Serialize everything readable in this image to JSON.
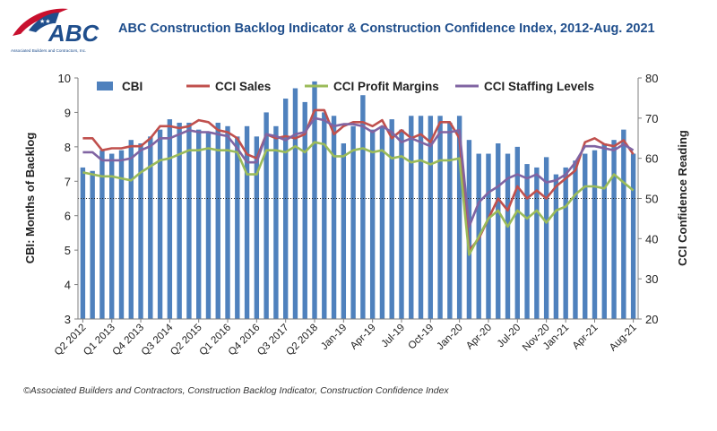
{
  "logo": {
    "text": "ABC",
    "subtext": "Associated Builders and Contractors, Inc."
  },
  "chart_data": {
    "type": "bar+line",
    "title": "ABC Construction Backlog Indicator & Construction Confidence Index, 2012-Aug. 2021",
    "ylabel_left": "CBI: Months of Backlog",
    "ylabel_right": "CCI Confidence Reading",
    "ylim_left": [
      3,
      10
    ],
    "ylim_right": [
      20,
      80
    ],
    "yticks_left": [
      "3",
      "4",
      "5",
      "6",
      "7",
      "8",
      "9",
      "10"
    ],
    "yticks_right": [
      "20",
      "30",
      "40",
      "50",
      "60",
      "70",
      "80"
    ],
    "reference_line_right": 50,
    "x_tick_labels": [
      "Q2 2012",
      "Q1 2013",
      "Q4 2013",
      "Q3 2014",
      "Q2 2015",
      "Q1 2016",
      "Q4 2016",
      "Q3 2017",
      "Q2 2018",
      "Jan-19",
      "Apr-19",
      "Jul-19",
      "Oct-19",
      "Jan-20",
      "Apr-20",
      "Jul-20",
      "Nov-20",
      "Jan-21",
      "Apr-21",
      "Aug-21"
    ],
    "x_tick_positions": [
      0,
      3,
      6,
      9,
      12,
      15,
      18,
      21,
      24,
      27,
      30,
      33,
      36,
      39,
      42,
      45,
      48,
      50,
      53,
      57
    ],
    "series": [
      {
        "name": "CBI",
        "type": "bar",
        "axis": "left",
        "color": "#4f81bd",
        "values": [
          7.4,
          7.3,
          7.9,
          7.8,
          7.9,
          8.2,
          8.1,
          8.3,
          8.5,
          8.8,
          8.7,
          8.7,
          8.5,
          8.4,
          8.7,
          8.6,
          8.3,
          8.6,
          8.3,
          9.0,
          8.6,
          9.4,
          9.7,
          9.3,
          9.9,
          9.0,
          8.9,
          8.1,
          8.6,
          9.5,
          8.5,
          8.6,
          8.8,
          8.5,
          8.9,
          8.9,
          8.9,
          8.9,
          8.7,
          8.9,
          8.2,
          7.8,
          7.8,
          8.1,
          7.8,
          8.0,
          7.5,
          7.4,
          7.7,
          7.2,
          7.4,
          7.6,
          7.8,
          7.9,
          8.1,
          8.2,
          8.5,
          7.8
        ]
      },
      {
        "name": "CCI Sales",
        "type": "line",
        "axis": "right",
        "color": "#c0504d",
        "values": [
          65,
          65,
          62,
          62.5,
          62.5,
          63,
          63,
          65,
          68,
          68,
          67.5,
          68,
          69.5,
          69,
          67,
          66.5,
          65,
          61,
          60,
          66,
          65,
          65.5,
          65,
          66,
          72,
          72,
          66,
          68,
          69,
          69,
          68,
          69.5,
          65,
          67,
          65,
          66,
          64,
          69,
          69,
          65,
          37,
          40,
          45,
          50,
          47,
          53,
          50,
          52,
          50,
          53,
          55,
          57,
          64,
          65,
          63.5,
          63,
          64.5,
          61
        ]
      },
      {
        "name": "CCI Profit Margins",
        "type": "line",
        "axis": "right",
        "color": "#9bbb59",
        "values": [
          56.5,
          56,
          55.5,
          55.5,
          55,
          54.5,
          56.5,
          58,
          59.5,
          60,
          61,
          62,
          62,
          62.5,
          62,
          62,
          61.5,
          56,
          56,
          62,
          62,
          61.5,
          63,
          61.5,
          64,
          63.5,
          60.5,
          60.5,
          62,
          62.5,
          61.5,
          62,
          60,
          60.5,
          59,
          59.5,
          58.5,
          59.5,
          59.5,
          60,
          36,
          40.5,
          45,
          47,
          43,
          47,
          45,
          47,
          44,
          47,
          48,
          51,
          53,
          53,
          52.5,
          56,
          54,
          52
        ]
      },
      {
        "name": "CCI Staffing Levels",
        "type": "line",
        "axis": "right",
        "color": "#8064a2",
        "values": [
          61.5,
          61.5,
          59.5,
          59.5,
          59.5,
          60,
          62,
          63,
          65,
          65,
          66,
          67,
          66.5,
          66.5,
          66,
          65.5,
          62.5,
          59,
          59,
          66,
          65.5,
          64.5,
          66,
          66.5,
          70,
          69.5,
          68,
          68.5,
          68.5,
          68,
          66.5,
          68,
          66.5,
          64,
          65,
          64,
          63,
          66.5,
          66.5,
          67,
          43,
          49,
          51.5,
          53,
          55,
          56,
          55,
          56,
          54,
          54.5,
          56,
          59,
          63,
          63,
          62.5,
          62,
          63.5,
          62
        ]
      }
    ],
    "legend": [
      "CBI",
      "CCI Sales",
      "CCI Profit Margins",
      "CCI Staffing Levels"
    ],
    "legend_position": "top"
  },
  "footer": "©Associated Builders and Contractors, Construction Backlog Indicator, Construction Confidence Index"
}
